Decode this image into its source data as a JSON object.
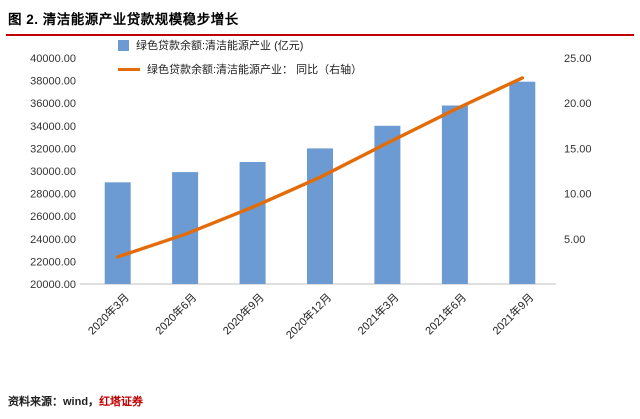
{
  "figure": {
    "title": "图 2. 清洁能源产业贷款规模稳步增长",
    "source_label": "资料来源：wind，",
    "source_org": "红塔证券"
  },
  "colors": {
    "bar": "#6B9BD2",
    "line": "#E36C09",
    "title_underline": "#C00000",
    "source_red": "#C00000",
    "axis_line": "#BFBFBF",
    "axis_text": "#333333"
  },
  "legend": [
    {
      "type": "bar",
      "label": "绿色贷款余额:清洁能源产业 (亿元)"
    },
    {
      "type": "line",
      "label": "绿色贷款余额:清洁能源产业： 同比（右轴）"
    }
  ],
  "chart_data": {
    "type": "bar+line",
    "title": "图 2. 清洁能源产业贷款规模稳步增长",
    "categories": [
      "2020年3月",
      "2020年6月",
      "2020年9月",
      "2020年12月",
      "2021年3月",
      "2021年6月",
      "2021年9月"
    ],
    "series": [
      {
        "name": "绿色贷款余额:清洁能源产业 (亿元)",
        "type": "bar",
        "axis": "left",
        "values": [
          29000,
          29900,
          30800,
          32000,
          34000,
          35800,
          37900
        ]
      },
      {
        "name": "绿色贷款余额:清洁能源产业：同比（右轴）",
        "type": "line",
        "axis": "right",
        "values": [
          3.0,
          5.5,
          8.5,
          11.8,
          15.6,
          19.3,
          22.8
        ]
      }
    ],
    "left_axis": {
      "min": 20000,
      "max": 40000,
      "ticks": [
        "40000.00",
        "38000.00",
        "36000.00",
        "34000.00",
        "32000.00",
        "30000.00",
        "28000.00",
        "26000.00",
        "24000.00",
        "22000.00",
        "20000.00"
      ]
    },
    "right_axis": {
      "min": 0,
      "max": 25,
      "ticks": [
        "25.00",
        "20.00",
        "15.00",
        "10.00",
        "5.00"
      ]
    },
    "grid": false,
    "legend_position": "top-left"
  }
}
